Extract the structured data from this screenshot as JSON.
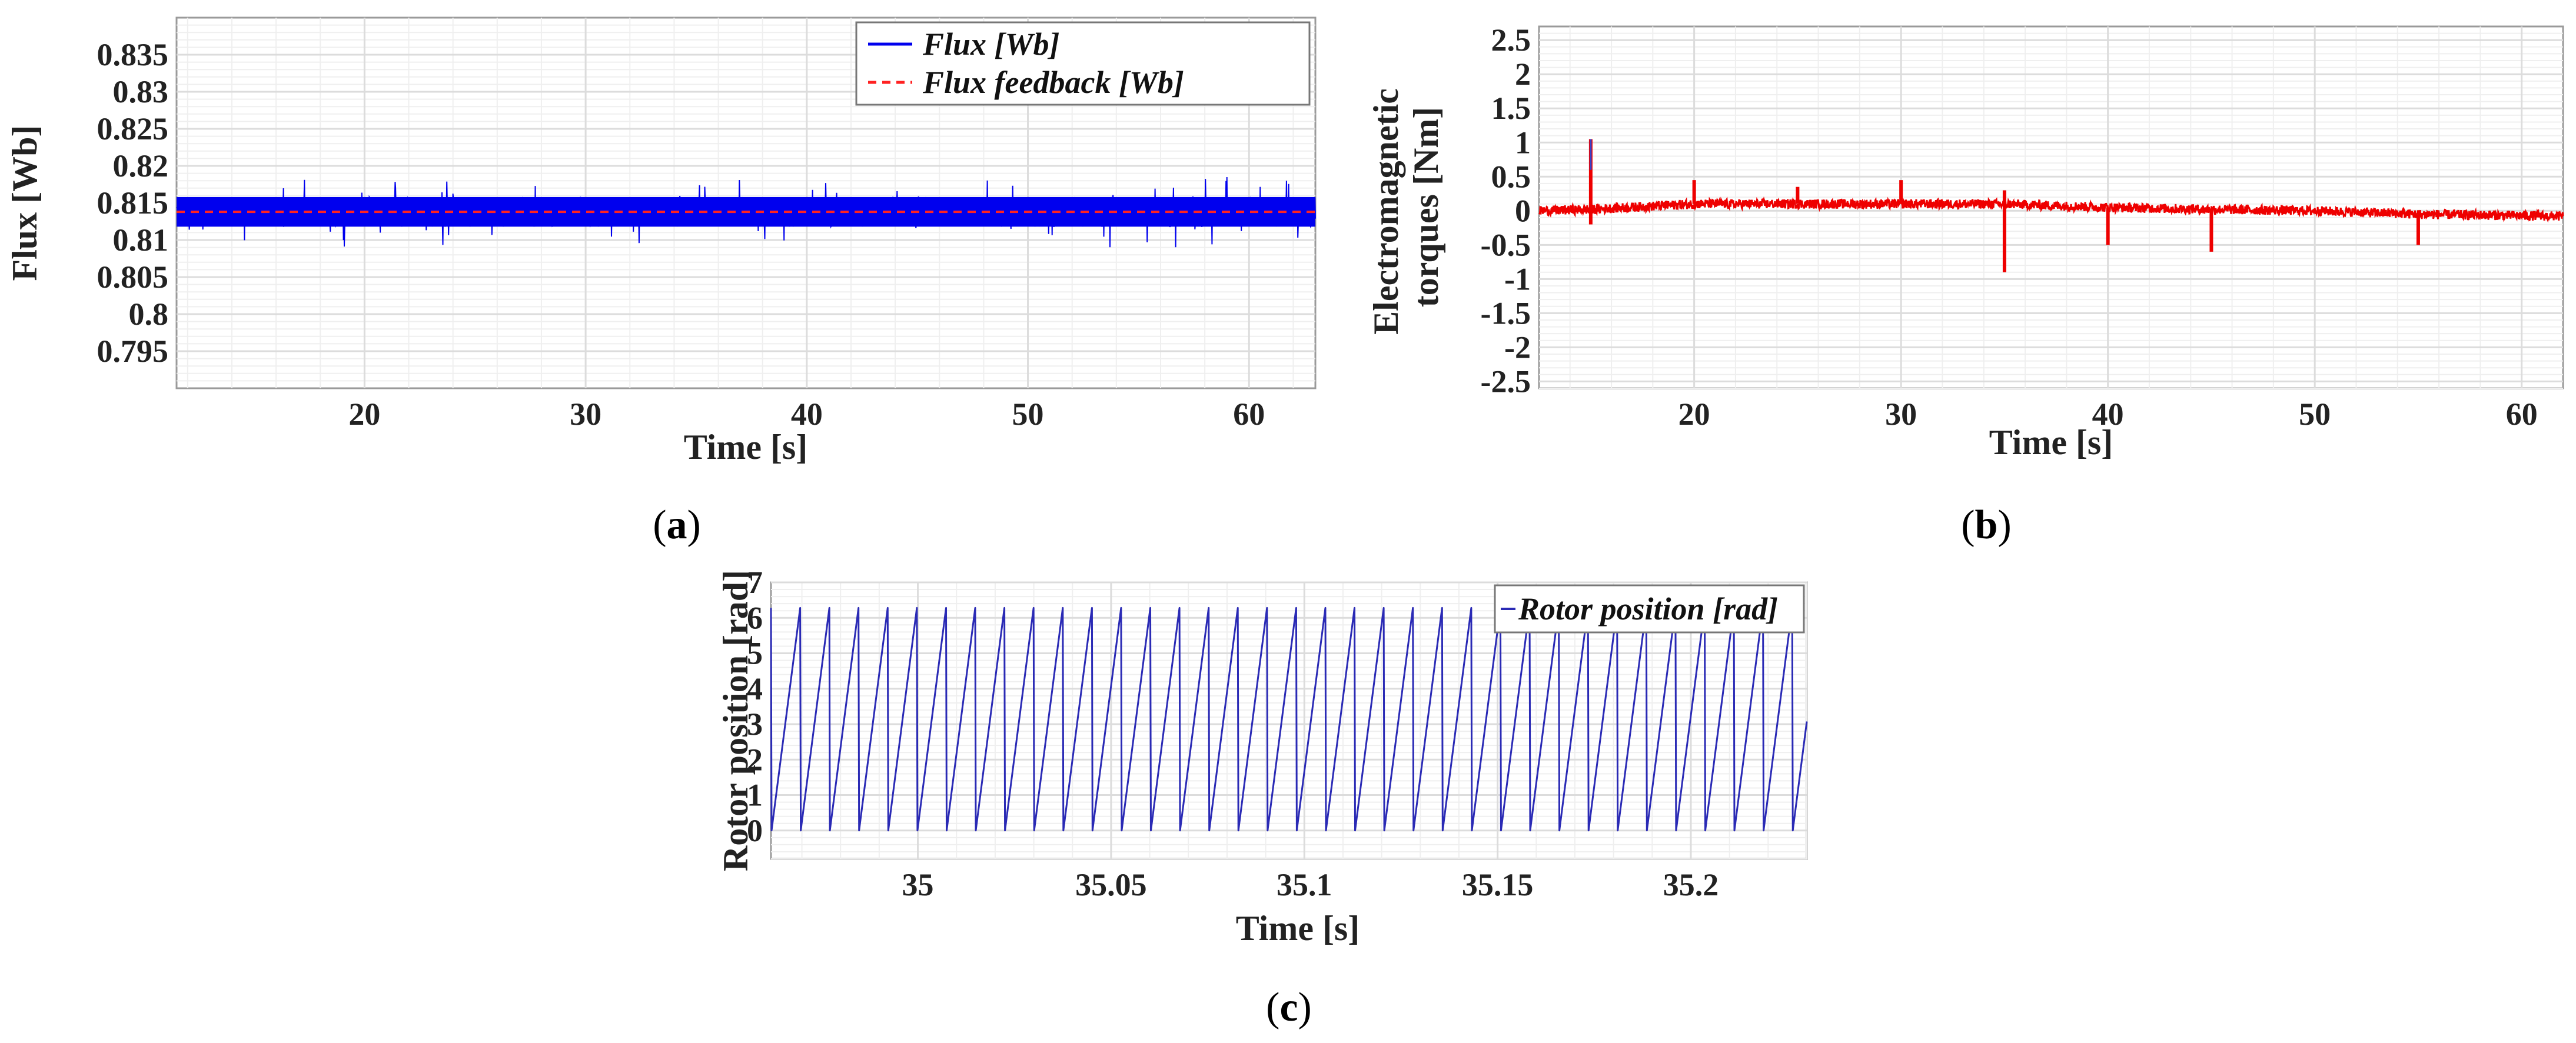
{
  "colors": {
    "flux": "#0000ee",
    "flux_feedback": "#ff2222",
    "torque": "#ee0000",
    "rotor": "#2a2ab5"
  },
  "chart_data": [
    {
      "id": "a",
      "type": "line",
      "caption_label": "a",
      "caption_left": "(",
      "caption_right": ")",
      "xlabel": "Time [s]",
      "ylabel": "Flux [Wb]",
      "xlim": [
        11.5,
        63
      ],
      "ylim": [
        0.79,
        0.84
      ],
      "xticks": [
        20,
        30,
        40,
        50,
        60
      ],
      "xtick_labels": [
        "20",
        "30",
        "40",
        "50",
        "60"
      ],
      "yticks": [
        0.795,
        0.8,
        0.805,
        0.81,
        0.815,
        0.82,
        0.825,
        0.83,
        0.835
      ],
      "ytick_labels": [
        "0.795",
        "0.8",
        "0.805",
        "0.81",
        "0.815",
        "0.82",
        "0.825",
        "0.83",
        "0.835"
      ],
      "grid": true,
      "legend_position": "top-right",
      "series": [
        {
          "name": "Flux [Wb]",
          "style": "solid",
          "center": 0.8138,
          "band": [
            0.8118,
            0.8158
          ],
          "peak_range": [
            0.809,
            0.8185
          ]
        },
        {
          "name": "Flux feedback [Wb]",
          "style": "dashed",
          "value": 0.8138
        }
      ]
    },
    {
      "id": "b",
      "type": "line",
      "caption_label": "b",
      "caption_left": "(",
      "caption_right": ")",
      "xlabel": "Time [s]",
      "ylabel": "Electromagnetic torques [Nm]",
      "ylabel_lines": [
        "Electromagnetic",
        "torques [Nm]"
      ],
      "xlim": [
        12.5,
        62
      ],
      "ylim": [
        -2.6,
        2.7
      ],
      "xticks": [
        20,
        30,
        40,
        50,
        60
      ],
      "xtick_labels": [
        "20",
        "30",
        "40",
        "50",
        "60"
      ],
      "yticks": [
        -2.5,
        -2,
        -1.5,
        -1,
        -0.5,
        0,
        0.5,
        1,
        1.5,
        2,
        2.5
      ],
      "ytick_labels": [
        "-2.5",
        "-2",
        "-1.5",
        "-1",
        "-0.5",
        "0",
        "0.5",
        "1",
        "1.5",
        "2",
        "2.5"
      ],
      "grid": true,
      "series": [
        {
          "name": "Electromagnetic torque",
          "baseline": [
            [
              12.5,
              0.0
            ],
            [
              15,
              0.02
            ],
            [
              20,
              0.1
            ],
            [
              30,
              0.1
            ],
            [
              35,
              0.1
            ],
            [
              40,
              0.05
            ],
            [
              45,
              0.02
            ],
            [
              50,
              0.0
            ],
            [
              55,
              -0.05
            ],
            [
              62,
              -0.08
            ]
          ],
          "spikes": [
            [
              15,
              1.05
            ],
            [
              15,
              -0.2
            ],
            [
              20,
              0.45
            ],
            [
              25,
              0.35
            ],
            [
              30,
              0.45
            ],
            [
              35,
              -0.9
            ],
            [
              35,
              0.3
            ],
            [
              40,
              -0.5
            ],
            [
              45,
              -0.6
            ],
            [
              55,
              -0.5
            ]
          ]
        }
      ]
    },
    {
      "id": "c",
      "type": "line",
      "caption_label": "c",
      "caption_left": "(",
      "caption_right": ")",
      "xlabel": "Time [s]",
      "ylabel": "Rotor position [rad]",
      "xlim": [
        34.962,
        35.23
      ],
      "ylim": [
        -0.8,
        7
      ],
      "xticks": [
        35,
        35.05,
        35.1,
        35.15,
        35.2
      ],
      "xtick_labels": [
        "35",
        "35.05",
        "35.1",
        "35.15",
        "35.2"
      ],
      "yticks": [
        0,
        1,
        2,
        3,
        4,
        5,
        6,
        7
      ],
      "ytick_labels": [
        "0",
        "1",
        "2",
        "3",
        "4",
        "5",
        "6",
        "7"
      ],
      "grid": true,
      "legend_position": "top-right",
      "series": [
        {
          "name": "Rotor position [rad]",
          "style": "sawtooth",
          "min": 0,
          "max": 6.28,
          "cycles": 35.5,
          "end_value": 3.0
        }
      ]
    }
  ]
}
